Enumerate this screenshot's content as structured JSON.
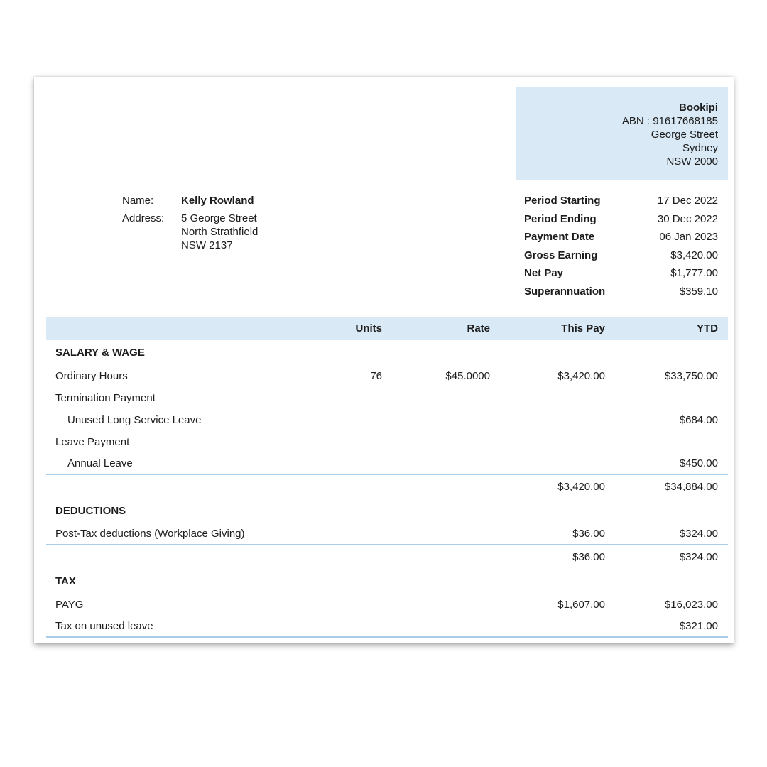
{
  "company": {
    "name": "Bookipi",
    "abn": "ABN : 91617668185",
    "address_lines": [
      "George Street",
      "Sydney",
      "NSW 2000"
    ]
  },
  "employee": {
    "name_label": "Name:",
    "name": "Kelly Rowland",
    "address_label": "Address:",
    "address_lines": [
      "5 George Street",
      "North Strathfield",
      "NSW 2137"
    ]
  },
  "summary": [
    {
      "label": "Period Starting",
      "value": "17 Dec 2022"
    },
    {
      "label": "Period Ending",
      "value": "30 Dec 2022"
    },
    {
      "label": "Payment Date",
      "value": "06 Jan 2023"
    },
    {
      "label": "Gross Earning",
      "value": "$3,420.00"
    },
    {
      "label": "Net Pay",
      "value": "$1,777.00"
    },
    {
      "label": "Superannuation",
      "value": "$359.10"
    }
  ],
  "table": {
    "headers": {
      "units": "Units",
      "rate": "Rate",
      "this_pay": "This Pay",
      "ytd": "YTD"
    },
    "rows": [
      {
        "type": "section",
        "label": "SALARY & WAGE"
      },
      {
        "type": "item",
        "label": "Ordinary Hours",
        "units": "76",
        "rate": "$45.0000",
        "this_pay": "$3,420.00",
        "ytd": "$33,750.00"
      },
      {
        "type": "item",
        "label": "Termination Payment"
      },
      {
        "type": "item",
        "label": "Unused Long Service Leave",
        "indent": true,
        "ytd": "$684.00"
      },
      {
        "type": "item",
        "label": "Leave Payment"
      },
      {
        "type": "item",
        "label": "Annual Leave",
        "indent": true,
        "ytd": "$450.00",
        "divider_below": true
      },
      {
        "type": "subtotal",
        "this_pay": "$3,420.00",
        "ytd": "$34,884.00"
      },
      {
        "type": "section",
        "label": "DEDUCTIONS"
      },
      {
        "type": "item",
        "label": "Post-Tax deductions (Workplace Giving)",
        "this_pay": "$36.00",
        "ytd": "$324.00",
        "divider_below": true
      },
      {
        "type": "subtotal",
        "this_pay": "$36.00",
        "ytd": "$324.00"
      },
      {
        "type": "section",
        "label": "TAX"
      },
      {
        "type": "item",
        "label": "PAYG",
        "this_pay": "$1,607.00",
        "ytd": "$16,023.00"
      },
      {
        "type": "item",
        "label": "Tax on unused leave",
        "ytd": "$321.00",
        "divider_below": true
      }
    ]
  },
  "colors": {
    "accent_bg": "#d9e9f6",
    "divider": "#a9cde9"
  }
}
